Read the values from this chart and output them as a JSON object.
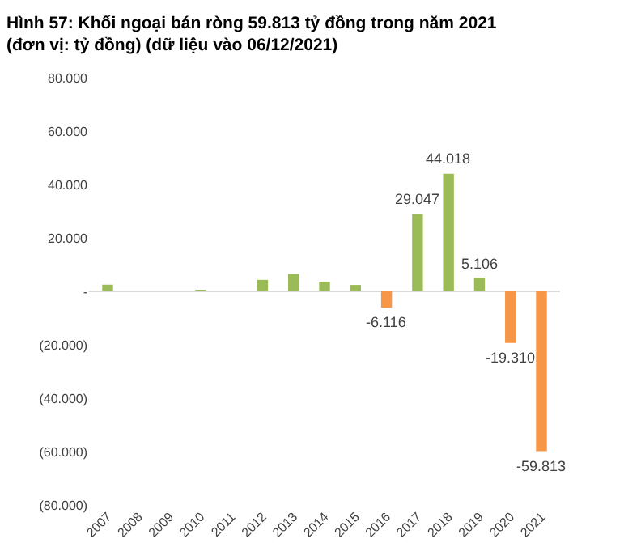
{
  "chart_data": {
    "type": "bar",
    "title": "Hình 57: Khối ngoại bán ròng 59.813 tỷ đồng trong năm 2021 (đơn vị: tỷ đồng) (dữ liệu vào 06/12/2021)",
    "categories": [
      "2007",
      "2008",
      "2009",
      "2010",
      "2011",
      "2012",
      "2013",
      "2014",
      "2015",
      "2016",
      "2017",
      "2018",
      "2019",
      "2020",
      "2021"
    ],
    "values": [
      2500,
      0,
      0,
      500,
      0,
      4300,
      6500,
      3600,
      2400,
      -6116,
      29047,
      44018,
      5106,
      -19310,
      -59813
    ],
    "colors": [
      "#9bbb59",
      "#9bbb59",
      "#9bbb59",
      "#9bbb59",
      "#9bbb59",
      "#9bbb59",
      "#9bbb59",
      "#9bbb59",
      "#9bbb59",
      "#f79646",
      "#9bbb59",
      "#9bbb59",
      "#9bbb59",
      "#f79646",
      "#f79646"
    ],
    "value_labels": [
      null,
      null,
      null,
      null,
      null,
      null,
      null,
      null,
      null,
      "-6.116",
      "29.047",
      "44.018",
      "5.106",
      "-19.310",
      "-59.813"
    ],
    "ylim": [
      -80000,
      80000
    ],
    "yticks": [
      {
        "value": 80000,
        "label": "80.000"
      },
      {
        "value": 60000,
        "label": "60.000"
      },
      {
        "value": 40000,
        "label": "40.000"
      },
      {
        "value": 20000,
        "label": "20.000"
      },
      {
        "value": 0,
        "label": "-"
      },
      {
        "value": -20000,
        "label": "(20.000)"
      },
      {
        "value": -40000,
        "label": "(40.000)"
      },
      {
        "value": -60000,
        "label": "(60.000)"
      },
      {
        "value": -80000,
        "label": "(80.000)"
      }
    ],
    "ref_lines": [
      {
        "axis": "y",
        "value": 0,
        "color": "#d9d9d9"
      }
    ],
    "grid": false
  }
}
